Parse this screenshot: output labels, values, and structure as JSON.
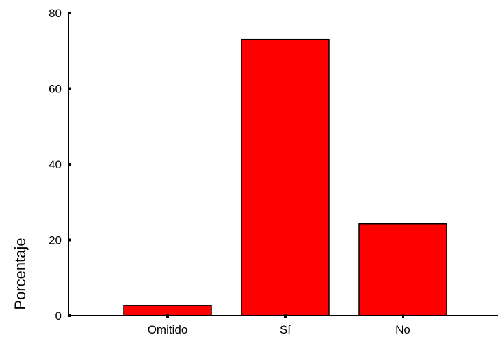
{
  "chart_data": {
    "type": "bar",
    "title": "",
    "xlabel": "",
    "ylabel": "Porcentaje",
    "categories": [
      "Omitido",
      "Sí",
      "No"
    ],
    "values": [
      2.7,
      73.0,
      24.3
    ],
    "ylim": [
      0,
      80
    ],
    "yticks": [
      0,
      20,
      40,
      60,
      80
    ],
    "grid": false,
    "legend": "none",
    "bar_color": "#ff0000",
    "bar_edge_color": "#000000"
  }
}
